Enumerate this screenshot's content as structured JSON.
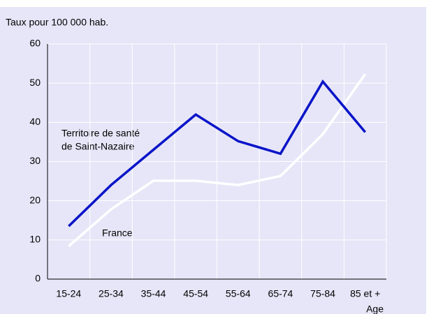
{
  "chart_data": {
    "type": "line",
    "ylabel": "Taux pour 100 000 hab.",
    "xlabel": "Age",
    "categories": [
      "15-24",
      "25-34",
      "35-44",
      "45-54",
      "55-64",
      "65-74",
      "75-84",
      "85 et +"
    ],
    "series": [
      {
        "color": "#0a14c8",
        "values": [
          13.5,
          24,
          33,
          42,
          35.2,
          32,
          50.4,
          37.5
        ]
      },
      {
        "color": "#ffffff",
        "values": [
          8.4,
          17.8,
          25.1,
          25.1,
          24,
          26.3,
          37,
          52.3
        ]
      }
    ],
    "annotations": [
      "Territoire de santé",
      "de Saint-Nazaire",
      "France"
    ],
    "ylim": [
      0,
      60
    ],
    "yticks": [
      0,
      10,
      20,
      30,
      40,
      50,
      60
    ],
    "grid": true,
    "background": "#e6e6f8"
  }
}
